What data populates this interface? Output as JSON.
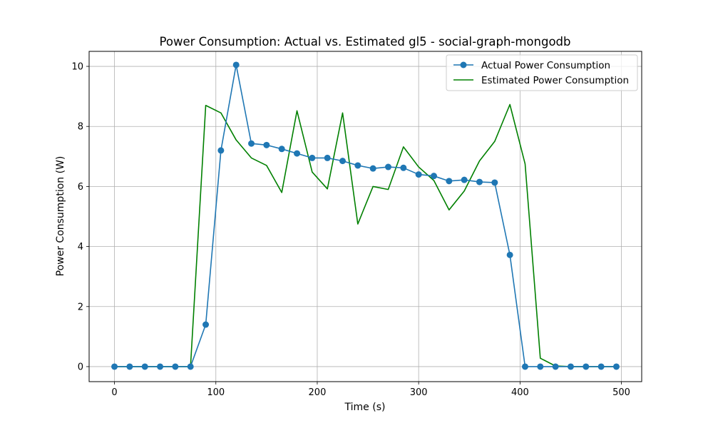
{
  "chart_data": {
    "type": "line",
    "title": "Power Consumption: Actual vs. Estimated gl5 - social-graph-mongodb",
    "xlabel": "Time (s)",
    "ylabel": "Power Consumption (W)",
    "xlim": [
      -25,
      520
    ],
    "ylim": [
      -0.5,
      10.5
    ],
    "xticks": [
      0,
      100,
      200,
      300,
      400,
      500
    ],
    "yticks": [
      0,
      2,
      4,
      6,
      8,
      10
    ],
    "grid": true,
    "legend_position": "top-right",
    "series": [
      {
        "name": "Actual Power Consumption",
        "color": "#1f77b4",
        "marker": "circle",
        "x": [
          0,
          15,
          30,
          45,
          60,
          75,
          90,
          105,
          120,
          135,
          150,
          165,
          180,
          195,
          210,
          225,
          240,
          255,
          270,
          285,
          300,
          315,
          330,
          345,
          360,
          375,
          390,
          405,
          420,
          435,
          450,
          465,
          480,
          495
        ],
        "y": [
          0,
          0,
          0,
          0,
          0,
          0,
          1.4,
          7.2,
          10.05,
          7.43,
          7.38,
          7.25,
          7.1,
          6.95,
          6.95,
          6.85,
          6.7,
          6.6,
          6.65,
          6.62,
          6.4,
          6.35,
          6.18,
          6.22,
          6.15,
          6.13,
          3.72,
          0,
          0,
          0,
          0,
          0,
          0,
          0
        ]
      },
      {
        "name": "Estimated Power Consumption",
        "color": "#008000",
        "marker": "none",
        "x": [
          0,
          15,
          30,
          45,
          60,
          75,
          90,
          105,
          120,
          135,
          150,
          165,
          180,
          195,
          210,
          225,
          240,
          255,
          270,
          285,
          300,
          315,
          330,
          345,
          360,
          375,
          390,
          405,
          420,
          435,
          450,
          465,
          480,
          495
        ],
        "y": [
          0,
          0,
          0,
          0,
          0,
          0,
          8.7,
          8.45,
          7.55,
          6.95,
          6.7,
          5.8,
          8.52,
          6.48,
          5.92,
          8.45,
          4.75,
          6.0,
          5.9,
          7.32,
          6.65,
          6.2,
          5.22,
          5.85,
          6.85,
          7.5,
          8.73,
          6.75,
          0.28,
          0.02,
          0,
          0,
          0,
          0
        ]
      }
    ]
  }
}
